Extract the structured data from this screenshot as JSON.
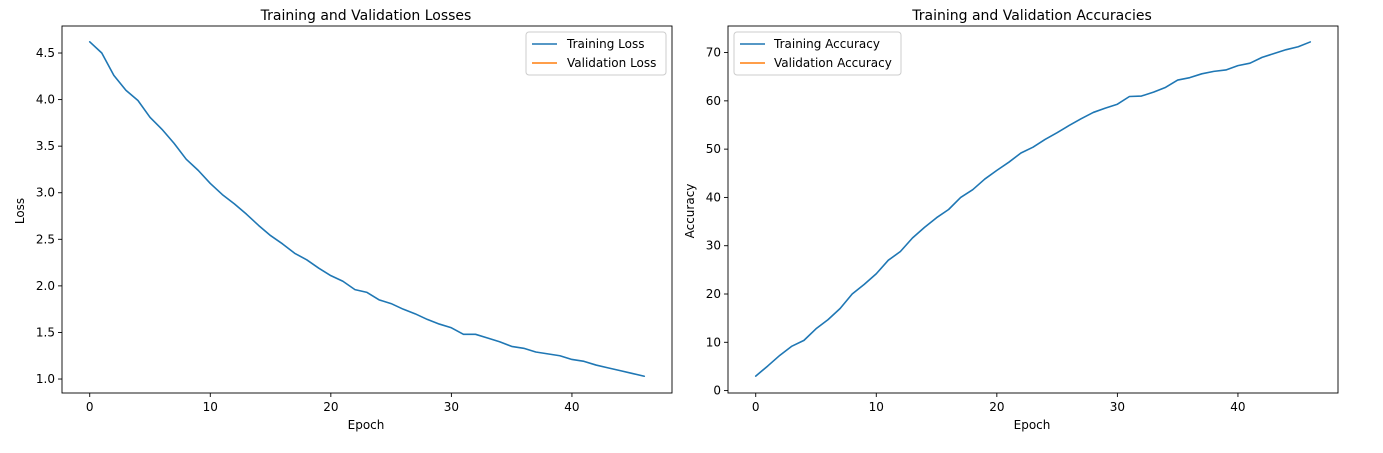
{
  "chart_data": [
    {
      "type": "line",
      "title": "Training and Validation Losses",
      "xlabel": "Epoch",
      "ylabel": "Loss",
      "xlim": [
        -2.3,
        48.3
      ],
      "ylim": [
        0.85,
        4.79
      ],
      "xticks": [
        0,
        10,
        20,
        30,
        40
      ],
      "yticks": [
        1.0,
        1.5,
        2.0,
        2.5,
        3.0,
        3.5,
        4.0,
        4.5
      ],
      "ytick_labels": [
        "1.0",
        "1.5",
        "2.0",
        "2.5",
        "3.0",
        "3.5",
        "4.0",
        "4.5"
      ],
      "legend_position": "top-right",
      "grid": false,
      "series": [
        {
          "name": "Training Loss",
          "color": "#1f77b4",
          "x": [
            0,
            1,
            2,
            3,
            4,
            5,
            6,
            7,
            8,
            9,
            10,
            11,
            12,
            13,
            14,
            15,
            16,
            17,
            18,
            19,
            20,
            21,
            22,
            23,
            24,
            25,
            26,
            27,
            28,
            29,
            30,
            31,
            32,
            33,
            34,
            35,
            36,
            37,
            38,
            39,
            40,
            41,
            42,
            43,
            44,
            45,
            46
          ],
          "values": [
            4.62,
            4.5,
            4.26,
            4.1,
            3.99,
            3.81,
            3.68,
            3.53,
            3.36,
            3.24,
            3.1,
            2.98,
            2.88,
            2.77,
            2.65,
            2.54,
            2.45,
            2.35,
            2.28,
            2.19,
            2.11,
            2.05,
            1.96,
            1.93,
            1.85,
            1.81,
            1.75,
            1.7,
            1.64,
            1.59,
            1.55,
            1.48,
            1.48,
            1.44,
            1.4,
            1.35,
            1.33,
            1.29,
            1.27,
            1.25,
            1.21,
            1.19,
            1.15,
            1.12,
            1.09,
            1.06,
            1.03
          ]
        },
        {
          "name": "Validation Loss",
          "color": "#ff7f0e",
          "x": [],
          "values": []
        }
      ]
    },
    {
      "type": "line",
      "title": "Training and Validation Accuracies",
      "xlabel": "Epoch",
      "ylabel": "Accuracy",
      "xlim": [
        -2.3,
        48.3
      ],
      "ylim": [
        -0.5,
        75.5
      ],
      "xticks": [
        0,
        10,
        20,
        30,
        40
      ],
      "yticks": [
        0,
        10,
        20,
        30,
        40,
        50,
        60,
        70
      ],
      "ytick_labels": [
        "0",
        "10",
        "20",
        "30",
        "40",
        "50",
        "60",
        "70"
      ],
      "legend_position": "top-left",
      "grid": false,
      "series": [
        {
          "name": "Training Accuracy",
          "color": "#1f77b4",
          "x": [
            0,
            1,
            2,
            3,
            4,
            5,
            6,
            7,
            8,
            9,
            10,
            11,
            12,
            13,
            14,
            15,
            16,
            17,
            18,
            19,
            20,
            21,
            22,
            23,
            24,
            25,
            26,
            27,
            28,
            29,
            30,
            31,
            32,
            33,
            34,
            35,
            36,
            37,
            38,
            39,
            40,
            41,
            42,
            43,
            44,
            45,
            46
          ],
          "values": [
            3.0,
            5.1,
            7.3,
            9.2,
            10.4,
            12.8,
            14.7,
            17.0,
            20.0,
            22.0,
            24.2,
            27.0,
            28.8,
            31.6,
            33.8,
            35.8,
            37.5,
            40.0,
            41.6,
            43.8,
            45.6,
            47.3,
            49.2,
            50.4,
            52.0,
            53.4,
            54.9,
            56.3,
            57.6,
            58.5,
            59.3,
            60.9,
            61.0,
            61.8,
            62.8,
            64.3,
            64.8,
            65.6,
            66.1,
            66.4,
            67.3,
            67.8,
            69.0,
            69.8,
            70.6,
            71.2,
            72.2
          ]
        },
        {
          "name": "Validation Accuracy",
          "color": "#ff7f0e",
          "x": [],
          "values": []
        }
      ]
    }
  ]
}
